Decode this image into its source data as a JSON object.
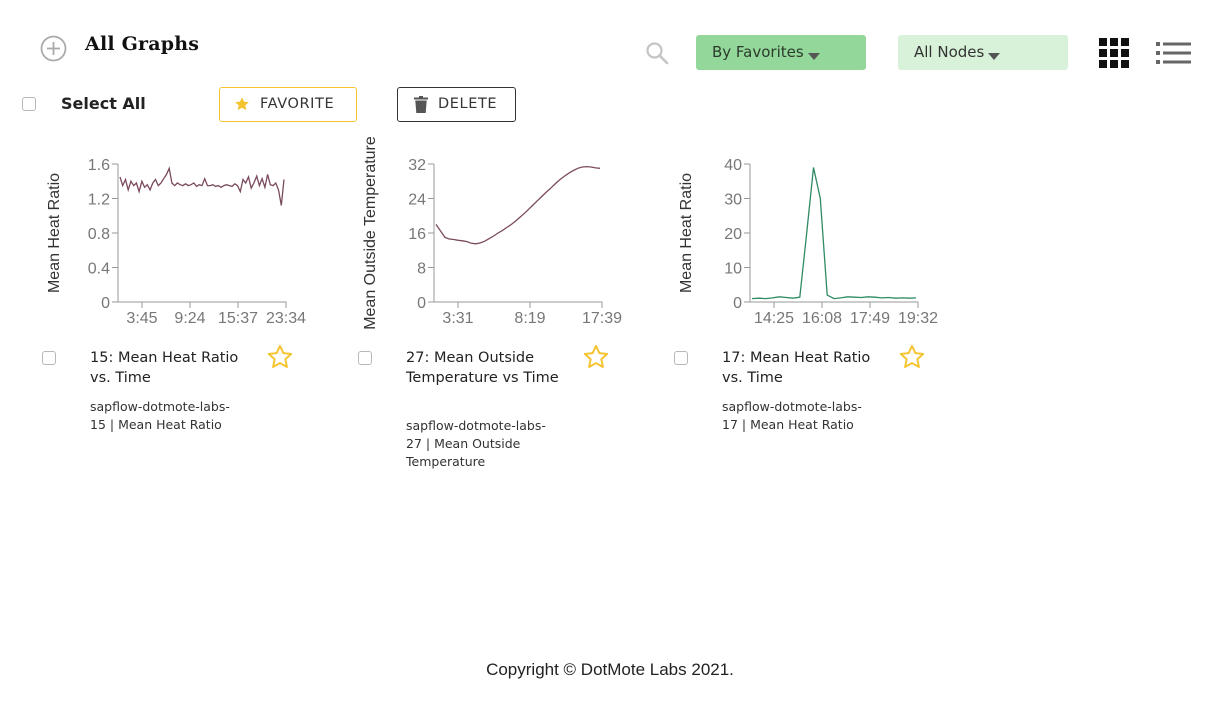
{
  "header": {
    "title": "All Graphs",
    "favorites_dropdown": "By Favorites",
    "nodes_dropdown": "All Nodes",
    "favorites_dropdown_color": "#93d79a",
    "nodes_dropdown_color": "#d8f2d9"
  },
  "toolbar": {
    "select_all_label": "Select All",
    "favorite_label": "FAVORITE",
    "delete_label": "DELETE"
  },
  "cards": [
    {
      "title": "15: Mean Heat Ratio vs. Time",
      "subtitle": "sapflow-dotmote-labs-15 | Mean Heat Ratio",
      "favorited": false
    },
    {
      "title": "27: Mean Outside Temperature vs Time",
      "subtitle": "sapflow-dotmote-labs-27 | Mean Outside Temperature",
      "favorited": false
    },
    {
      "title": "17: Mean Heat Ratio vs. Time",
      "subtitle": "sapflow-dotmote-labs-17 | Mean Heat Ratio",
      "favorited": false
    }
  ],
  "chart_data": [
    {
      "type": "line",
      "ylabel": "Mean Heat Ratio",
      "ylim": [
        0,
        1.6
      ],
      "yticks": [
        0,
        0.4,
        0.8,
        1.2,
        1.6
      ],
      "xtick_labels": [
        "3:45",
        "9:24",
        "15:37",
        "23:34"
      ],
      "line_color": "#7a4a5e",
      "series": [
        {
          "values": [
            1.45,
            1.35,
            1.42,
            1.3,
            1.4,
            1.35,
            1.38,
            1.28,
            1.4,
            1.33,
            1.36,
            1.3,
            1.38,
            1.42,
            1.35,
            1.38,
            1.43,
            1.48,
            1.55,
            1.38,
            1.35,
            1.38,
            1.36,
            1.35,
            1.37,
            1.35,
            1.36,
            1.38,
            1.34,
            1.36,
            1.35,
            1.43,
            1.35,
            1.35,
            1.36,
            1.34,
            1.35,
            1.33,
            1.35,
            1.36,
            1.35,
            1.34,
            1.37,
            1.35,
            1.28,
            1.42,
            1.38,
            1.45,
            1.32,
            1.38,
            1.46,
            1.35,
            1.43,
            1.33,
            1.48,
            1.36,
            1.35,
            1.38,
            1.3,
            1.12,
            1.42
          ]
        }
      ]
    },
    {
      "type": "line",
      "ylabel": "Mean Outside Temperature",
      "ylim": [
        0,
        32
      ],
      "yticks": [
        0,
        8,
        16,
        24,
        32
      ],
      "xtick_labels": [
        "3:31",
        "8:19",
        "17:39"
      ],
      "line_color": "#7a4a5e",
      "series": [
        {
          "values": [
            18,
            16.5,
            15,
            14.6,
            14.5,
            14.3,
            14.2,
            14,
            13.6,
            13.5,
            13.7,
            14.1,
            14.7,
            15.3,
            16,
            16.6,
            17.3,
            18,
            18.8,
            19.7,
            20.6,
            21.6,
            22.6,
            23.6,
            24.6,
            25.6,
            26.5,
            27.5,
            28.4,
            29.2,
            29.9,
            30.5,
            31,
            31.3,
            31.4,
            31.3,
            31.1,
            31
          ]
        }
      ]
    },
    {
      "type": "line",
      "ylabel": "Mean Heat Ratio",
      "ylim": [
        0,
        40
      ],
      "yticks": [
        0,
        10,
        20,
        30,
        40
      ],
      "xtick_labels": [
        "14:25",
        "16:08",
        "17:49",
        "19:32"
      ],
      "line_color": "#2e8b63",
      "series": [
        {
          "values": [
            1,
            1.1,
            1,
            1.2,
            1.5,
            1.3,
            1.1,
            1.4,
            20,
            39,
            30,
            2,
            1,
            1.2,
            1.5,
            1.4,
            1.3,
            1.5,
            1.4,
            1.2,
            1.3,
            1.1,
            1.2,
            1.1,
            1.2
          ]
        }
      ]
    }
  ],
  "footer": {
    "copyright": "Copyright © DotMote Labs 2021."
  }
}
